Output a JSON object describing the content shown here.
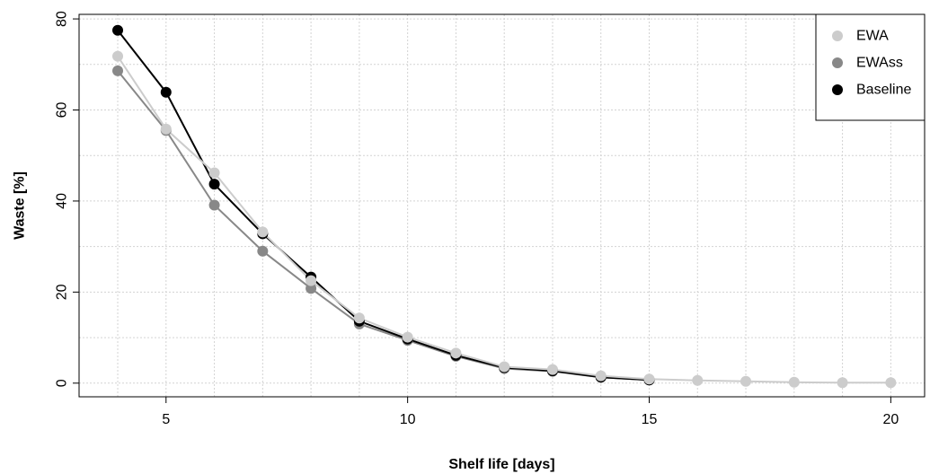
{
  "chart_data": {
    "type": "line",
    "title": "",
    "xlabel": "Shelf life [days]",
    "ylabel": "Waste [%]",
    "xlim": [
      3.2,
      20.7
    ],
    "ylim": [
      -3,
      81
    ],
    "xticks": [
      5,
      10,
      15,
      20
    ],
    "yticks": [
      0,
      20,
      40,
      60,
      80
    ],
    "x_gridlines": [
      4,
      5,
      6,
      7,
      8,
      9,
      10,
      11,
      12,
      13,
      14,
      15,
      16,
      17,
      18,
      19,
      20
    ],
    "y_gridlines": [
      0,
      10,
      20,
      30,
      40,
      50,
      60,
      70,
      80
    ],
    "grid": true,
    "legend_position": "top-right",
    "series": [
      {
        "name": "EWA",
        "color": "#cccccc",
        "x": [
          4,
          5,
          6,
          7,
          8,
          9,
          10,
          11,
          12,
          13,
          14,
          15,
          16,
          17,
          18,
          19,
          20
        ],
        "values": [
          71.8,
          55.8,
          46.2,
          33.2,
          22.5,
          14.3,
          10.1,
          6.6,
          3.6,
          3.0,
          1.6,
          0.9,
          0.6,
          0.4,
          0.2,
          0.1,
          0.1
        ]
      },
      {
        "name": "EWAss",
        "color": "#888888",
        "x": [
          4,
          5,
          6,
          7,
          8,
          9,
          10,
          11,
          12,
          13,
          14,
          15
        ],
        "values": [
          68.6,
          55.5,
          39.1,
          29.0,
          20.8,
          13.0,
          9.4,
          5.9,
          3.2,
          2.6,
          1.3,
          0.7
        ]
      },
      {
        "name": "Baseline",
        "color": "#000000",
        "x": [
          4,
          5,
          6,
          7,
          8,
          9,
          10,
          11,
          12,
          13,
          14,
          15
        ],
        "values": [
          77.5,
          63.9,
          43.7,
          32.8,
          23.3,
          13.6,
          9.7,
          6.1,
          3.4,
          2.7,
          1.3,
          0.7
        ]
      }
    ]
  }
}
